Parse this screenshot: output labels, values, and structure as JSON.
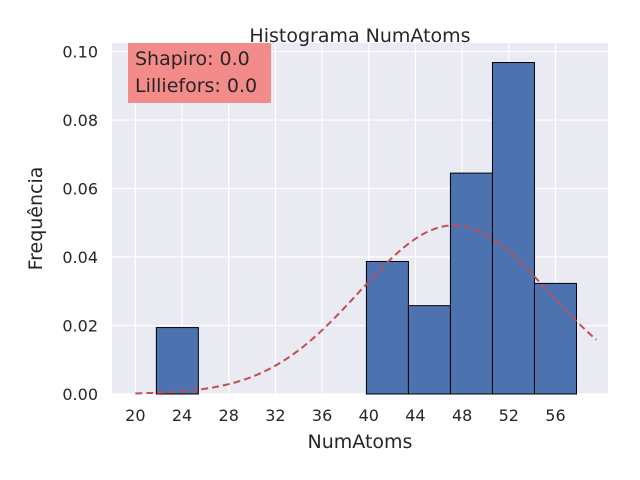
{
  "chart_data": {
    "type": "bar",
    "title": "Histograma NumAtoms",
    "xlabel": "NumAtoms",
    "ylabel": "Frequência",
    "xlim": [
      18.0,
      60.5
    ],
    "ylim": [
      0,
      0.1025
    ],
    "grid": true,
    "xticks": [
      20,
      24,
      28,
      32,
      36,
      40,
      44,
      48,
      52,
      56
    ],
    "yticks": [
      0.0,
      0.02,
      0.04,
      0.06,
      0.08,
      0.1
    ],
    "bins": [
      {
        "x0": 21.8,
        "x1": 25.4,
        "value": 0.0194
      },
      {
        "x0": 25.4,
        "x1": 29.0,
        "value": 0.0
      },
      {
        "x0": 29.0,
        "x1": 32.6,
        "value": 0.0
      },
      {
        "x0": 32.6,
        "x1": 36.2,
        "value": 0.0
      },
      {
        "x0": 36.2,
        "x1": 39.8,
        "value": 0.0
      },
      {
        "x0": 39.8,
        "x1": 43.4,
        "value": 0.0387
      },
      {
        "x0": 43.4,
        "x1": 47.0,
        "value": 0.0258
      },
      {
        "x0": 47.0,
        "x1": 50.6,
        "value": 0.0645
      },
      {
        "x0": 50.6,
        "x1": 54.2,
        "value": 0.0968
      },
      {
        "x0": 54.2,
        "x1": 57.8,
        "value": 0.0323
      }
    ],
    "curve": {
      "type": "normal-pdf",
      "mean": 47.3,
      "std": 8.1,
      "x_start": 20.0,
      "x_end": 59.5
    },
    "annotation": {
      "lines": [
        "Shapiro: 0.0",
        "Lilliefors: 0.0"
      ]
    },
    "colors": {
      "bar": "#4c72b0",
      "bar_edge": "#000000",
      "curve": "#c44e52",
      "plot_bg": "#eaeaf2",
      "grid": "#ffffff",
      "annotation_bg": "#f48b8b"
    }
  }
}
